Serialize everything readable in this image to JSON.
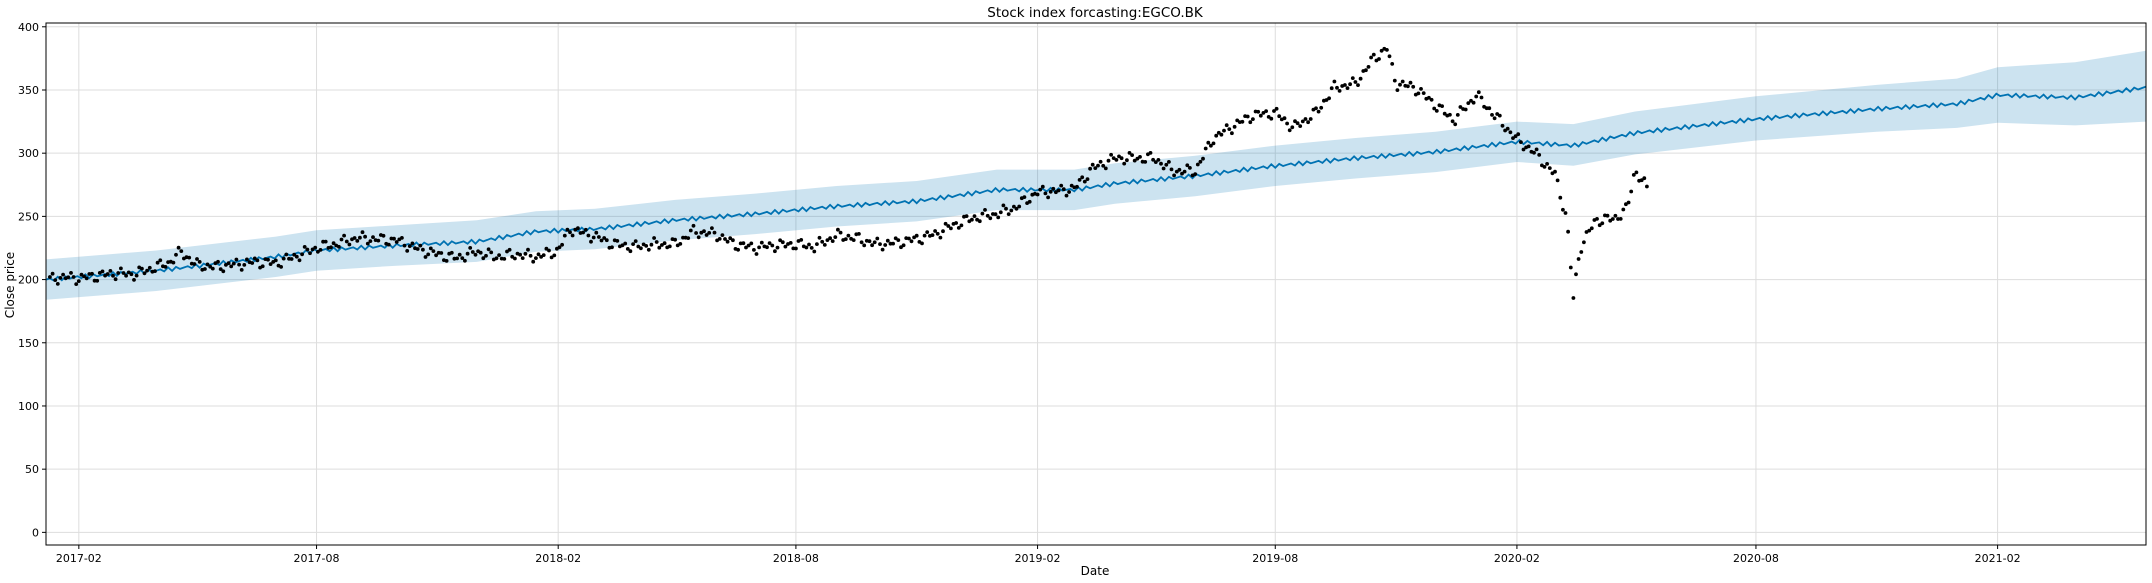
{
  "chart_data": {
    "type": "line",
    "title": "Stock index forcasting:EGCO.BK",
    "xlabel": "Date",
    "ylabel": "Close price",
    "x_axis": "date",
    "xlim": [
      "2017-01-07",
      "2021-05-25"
    ],
    "ylim": [
      -10,
      403
    ],
    "grid": true,
    "x_ticks": [
      "2017-02",
      "2017-08",
      "2018-02",
      "2018-08",
      "2019-02",
      "2019-08",
      "2020-02",
      "2020-08",
      "2021-02"
    ],
    "y_ticks": [
      0,
      50,
      100,
      150,
      200,
      250,
      300,
      350,
      400
    ],
    "colors": {
      "forecast_line": "#0072B2",
      "uncertainty_band": "#0072B2",
      "actual_points": "#000000",
      "grid": "#dddddd"
    },
    "series": [
      {
        "role": "forecast",
        "x": [
          "2017-01-07",
          "2017-04-01",
          "2017-07-01",
          "2017-08-01",
          "2017-10-01",
          "2017-12-01",
          "2018-01-15",
          "2018-03-01",
          "2018-05-01",
          "2018-07-01",
          "2018-09-01",
          "2018-11-01",
          "2019-01-01",
          "2019-03-01",
          "2019-04-01",
          "2019-06-01",
          "2019-08-01",
          "2019-10-01",
          "2019-12-01",
          "2020-02-01",
          "2020-03-15",
          "2020-05-01",
          "2020-08-01",
          "2020-11-01",
          "2021-01-01",
          "2021-02-01",
          "2021-04-01",
          "2021-05-25"
        ],
        "y": [
          200,
          207,
          218,
          223,
          227,
          230,
          238,
          240,
          247,
          252,
          258,
          262,
          271,
          271,
          276,
          282,
          290,
          296,
          301,
          309,
          306,
          316,
          327,
          335,
          339,
          346,
          344,
          352
        ]
      },
      {
        "role": "upper_bound",
        "x": [
          "2017-01-07",
          "2017-04-01",
          "2017-07-01",
          "2017-08-01",
          "2017-10-01",
          "2017-12-01",
          "2018-01-15",
          "2018-03-01",
          "2018-05-01",
          "2018-07-01",
          "2018-09-01",
          "2018-11-01",
          "2019-01-01",
          "2019-03-01",
          "2019-04-01",
          "2019-06-01",
          "2019-08-01",
          "2019-10-01",
          "2019-12-01",
          "2020-02-01",
          "2020-03-15",
          "2020-05-01",
          "2020-08-01",
          "2020-11-01",
          "2021-01-01",
          "2021-02-01",
          "2021-04-01",
          "2021-05-25"
        ],
        "y": [
          216,
          223,
          234,
          239,
          243,
          247,
          254,
          256,
          263,
          268,
          274,
          278,
          287,
          287,
          292,
          298,
          306,
          312,
          317,
          325,
          323,
          333,
          345,
          354,
          359,
          368,
          372,
          381
        ]
      },
      {
        "role": "lower_bound",
        "x": [
          "2017-01-07",
          "2017-04-01",
          "2017-07-01",
          "2017-08-01",
          "2017-10-01",
          "2017-12-01",
          "2018-01-15",
          "2018-03-01",
          "2018-05-01",
          "2018-07-01",
          "2018-09-01",
          "2018-11-01",
          "2019-01-01",
          "2019-03-01",
          "2019-04-01",
          "2019-06-01",
          "2019-08-01",
          "2019-10-01",
          "2019-12-01",
          "2020-02-01",
          "2020-03-15",
          "2020-05-01",
          "2020-08-01",
          "2020-11-01",
          "2021-01-01",
          "2021-02-01",
          "2021-04-01",
          "2021-05-25"
        ],
        "y": [
          184,
          191,
          202,
          207,
          211,
          214,
          222,
          224,
          231,
          236,
          242,
          246,
          255,
          255,
          260,
          266,
          274,
          280,
          285,
          293,
          290,
          299,
          310,
          317,
          320,
          324,
          322,
          325
        ]
      },
      {
        "role": "actual",
        "x": [
          "2017-01-10",
          "2017-01-20",
          "2017-02-01",
          "2017-02-15",
          "2017-03-01",
          "2017-03-15",
          "2017-04-01",
          "2017-04-10",
          "2017-04-20",
          "2017-05-01",
          "2017-05-15",
          "2017-06-01",
          "2017-06-15",
          "2017-07-01",
          "2017-07-15",
          "2017-08-01",
          "2017-08-15",
          "2017-09-01",
          "2017-09-15",
          "2017-10-01",
          "2017-10-15",
          "2017-11-01",
          "2017-11-15",
          "2017-12-01",
          "2017-12-15",
          "2018-01-01",
          "2018-01-15",
          "2018-02-01",
          "2018-02-10",
          "2018-03-01",
          "2018-03-15",
          "2018-04-01",
          "2018-04-15",
          "2018-05-01",
          "2018-05-15",
          "2018-06-01",
          "2018-06-15",
          "2018-07-01",
          "2018-07-15",
          "2018-08-01",
          "2018-08-15",
          "2018-09-01",
          "2018-09-15",
          "2018-10-01",
          "2018-10-15",
          "2018-11-01",
          "2018-11-15",
          "2018-12-01",
          "2018-12-15",
          "2019-01-01",
          "2019-01-15",
          "2019-02-01",
          "2019-02-15",
          "2019-03-01",
          "2019-03-15",
          "2019-04-01",
          "2019-04-15",
          "2019-05-01",
          "2019-05-15",
          "2019-06-01",
          "2019-06-15",
          "2019-07-01",
          "2019-07-15",
          "2019-08-01",
          "2019-08-15",
          "2019-09-01",
          "2019-09-15",
          "2019-10-01",
          "2019-10-15",
          "2019-10-25",
          "2019-11-01",
          "2019-11-15",
          "2019-12-01",
          "2019-12-15",
          "2020-01-01",
          "2020-01-15",
          "2020-02-01",
          "2020-02-15",
          "2020-03-01",
          "2020-03-10",
          "2020-03-15",
          "2020-03-20",
          "2020-04-01",
          "2020-04-15",
          "2020-04-25",
          "2020-05-01",
          "2020-05-10"
        ],
        "y": [
          200,
          202,
          201,
          203,
          205,
          204,
          210,
          213,
          222,
          212,
          210,
          212,
          214,
          213,
          218,
          225,
          228,
          233,
          232,
          231,
          225,
          220,
          217,
          222,
          218,
          220,
          218,
          223,
          240,
          234,
          228,
          226,
          228,
          228,
          238,
          236,
          228,
          225,
          227,
          228,
          226,
          235,
          233,
          228,
          229,
          232,
          236,
          244,
          249,
          252,
          257,
          269,
          270,
          272,
          288,
          296,
          296,
          296,
          286,
          286,
          312,
          322,
          330,
          332,
          320,
          332,
          352,
          355,
          375,
          383,
          355,
          352,
          338,
          326,
          346,
          330,
          311,
          300,
          283,
          248,
          185,
          225,
          247,
          248,
          256,
          287,
          272
        ]
      }
    ]
  }
}
